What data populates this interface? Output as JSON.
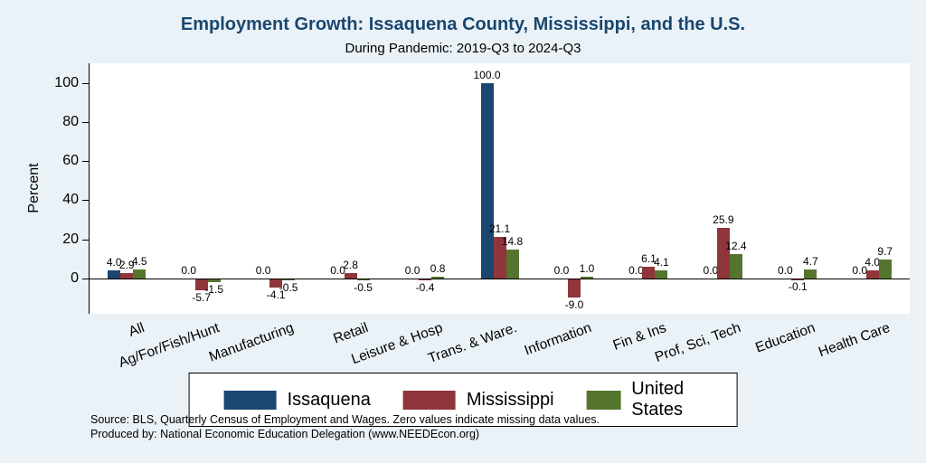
{
  "title": "Employment Growth: Issaquena County, Mississippi, and the U.S.",
  "subtitle": "During Pandemic: 2019-Q3 to 2024-Q3",
  "ylabel": "Percent",
  "notes": {
    "source": "Source: BLS, Quarterly Census of Employment and Wages. Zero values indicate missing data values.",
    "produced_by": "Produced by: National Economic Education Delegation (www.NEEDEcon.org)"
  },
  "colors": {
    "background": "#eaf2f8",
    "plot_background": "#ffffff",
    "title_text": "#1a476f",
    "issaquena": "#1a476f",
    "mississippi": "#90353b",
    "united_states": "#55752f"
  },
  "chart_data": {
    "type": "bar",
    "title": "Employment Growth: Issaquena County, Mississippi, and the U.S.",
    "subtitle": "During Pandemic: 2019-Q3 to 2024-Q3",
    "xlabel": "",
    "ylabel": "Percent",
    "categories": [
      "All",
      "Ag/For/Fish/Hunt",
      "Manufacturing",
      "Retail",
      "Leisure & Hosp",
      "Trans. & Ware.",
      "Information",
      "Fin & Ins",
      "Prof, Sci, Tech",
      "Education",
      "Health Care"
    ],
    "series": [
      {
        "name": "Issaquena",
        "color": "#1a476f",
        "values": [
          4.0,
          0.0,
          0.0,
          0.0,
          0.0,
          100.0,
          0.0,
          0.0,
          0.0,
          0.0,
          0.0
        ]
      },
      {
        "name": "Mississippi",
        "color": "#90353b",
        "values": [
          2.9,
          -5.7,
          -4.1,
          2.8,
          -0.4,
          21.1,
          -9.0,
          6.1,
          25.9,
          -0.1,
          4.0
        ]
      },
      {
        "name": "United States",
        "color": "#55752f",
        "values": [
          4.5,
          -1.5,
          -0.5,
          -0.5,
          0.8,
          14.8,
          1.0,
          4.1,
          12.4,
          4.7,
          9.7
        ]
      }
    ],
    "yticks": [
      0,
      20,
      40,
      60,
      80,
      100
    ],
    "ylim": [
      -18,
      110
    ],
    "grid": false,
    "legend_position": "bottom",
    "bar_labels": true
  }
}
